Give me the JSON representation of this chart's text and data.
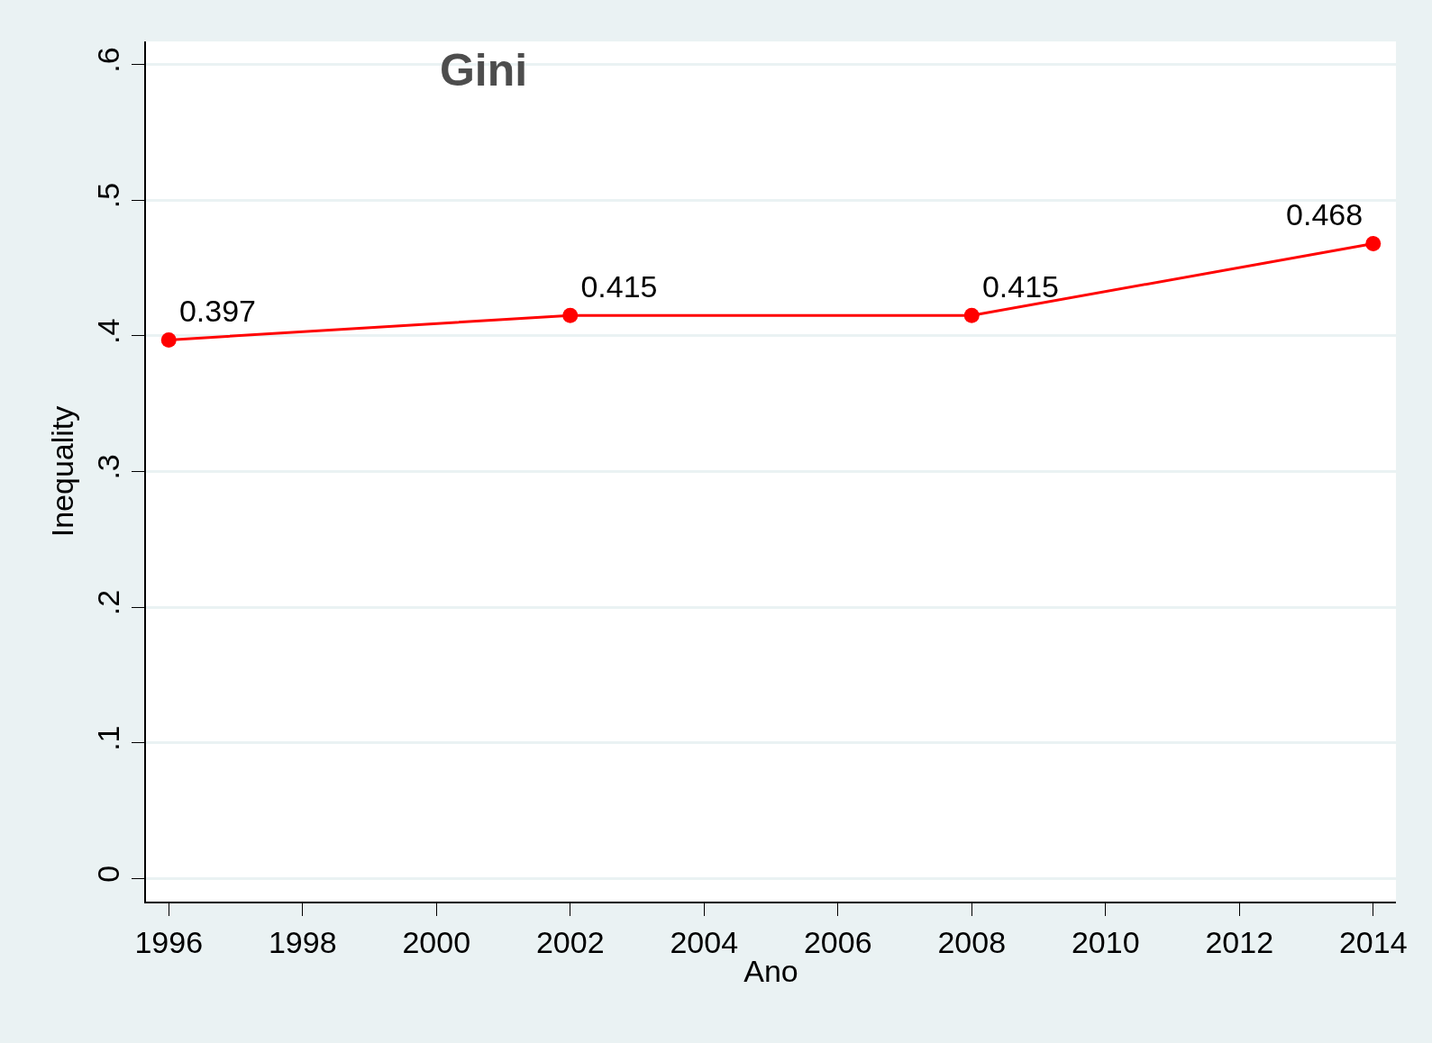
{
  "chart_data": {
    "type": "line",
    "title": "Gini",
    "xlabel": "Ano",
    "ylabel": "Inequality",
    "x": [
      1996,
      2002,
      2008,
      2014
    ],
    "series": [
      {
        "color": "#ff0000",
        "values": [
          0.397,
          0.415,
          0.415,
          0.468
        ]
      }
    ],
    "xlim": [
      1995.66,
      2014.34
    ],
    "xticks": [
      1996,
      1998,
      2000,
      2002,
      2004,
      2006,
      2008,
      2010,
      2012,
      2014
    ],
    "ylim": [
      -0.017,
      0.617
    ],
    "yticks": [
      {
        "value": 0,
        "label": "0"
      },
      {
        "value": 0.1,
        "label": ".1"
      },
      {
        "value": 0.2,
        "label": ".2"
      },
      {
        "value": 0.3,
        "label": ".3"
      },
      {
        "value": 0.4,
        "label": ".4"
      },
      {
        "value": 0.5,
        "label": ".5"
      },
      {
        "value": 0.6,
        "label": ".6"
      }
    ],
    "grid": "y",
    "marker": "circle",
    "line_style": "solid",
    "data_labels": true
  }
}
